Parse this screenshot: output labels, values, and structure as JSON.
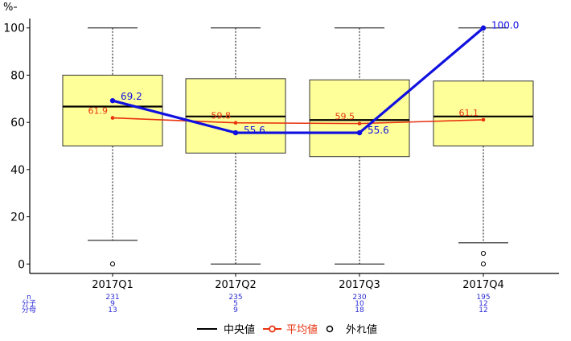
{
  "chart_data": {
    "type": "box",
    "ylabel": "%",
    "ylim": [
      -4,
      104
    ],
    "y_ticks": [
      0,
      20,
      40,
      60,
      80,
      100
    ],
    "categories": [
      "2017Q1",
      "2017Q2",
      "2017Q3",
      "2017Q4"
    ],
    "boxes": [
      {
        "whisker_low": 10,
        "q1": 50,
        "median": 66.7,
        "q3": 80,
        "whisker_high": 100,
        "outliers": [
          0
        ]
      },
      {
        "whisker_low": 0,
        "q1": 47,
        "median": 62.5,
        "q3": 78.5,
        "whisker_high": 100,
        "outliers": []
      },
      {
        "whisker_low": 0,
        "q1": 45.5,
        "median": 61,
        "q3": 78,
        "whisker_high": 100,
        "outliers": []
      },
      {
        "whisker_low": 9,
        "q1": 50,
        "median": 62.5,
        "q3": 77.5,
        "whisker_high": 100,
        "outliers": [
          4.5,
          0
        ]
      }
    ],
    "mean_series": {
      "values": [
        61.9,
        59.8,
        59.5,
        61.1
      ],
      "labels": [
        "61.9",
        "59.8",
        "59.5",
        "61.1"
      ],
      "color": "#e8320f"
    },
    "highlight_series": {
      "values": [
        69.2,
        55.6,
        55.6,
        100.0
      ],
      "labels": [
        "69.2",
        "55.6",
        "55.6",
        "100.0"
      ],
      "color": "#1010e0"
    },
    "box_fill": "#ffff99",
    "table": {
      "row_labels": [
        "n",
        "分子",
        "分母"
      ],
      "rows": [
        [
          "231",
          "235",
          "230",
          "195"
        ],
        [
          "9",
          "5",
          "10",
          "12"
        ],
        [
          "13",
          "9",
          "18",
          "12"
        ]
      ],
      "color": "#2a2ad6"
    },
    "legend": {
      "position": "bottom",
      "items": [
        {
          "label": "中央値",
          "kind": "line",
          "color": "#000000"
        },
        {
          "label": "平均値",
          "kind": "line-dot",
          "color": "#e8320f"
        },
        {
          "label": "外れ値",
          "kind": "circle",
          "color": "#000000"
        }
      ]
    }
  }
}
